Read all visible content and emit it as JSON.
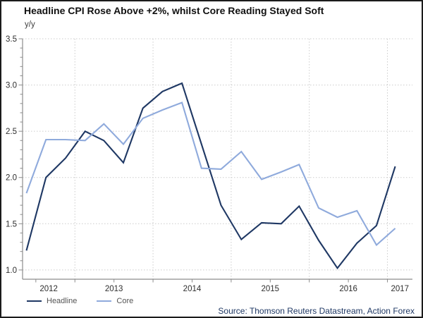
{
  "header": {
    "title": "Headline CPI Rose Above +2%, whilst Core Reading Stayed Soft"
  },
  "chart": {
    "ylabel": "y/y"
  },
  "legend": {
    "items": [
      {
        "label": "Headline",
        "color": "#1f3864"
      },
      {
        "label": "Core",
        "color": "#8faadc"
      }
    ]
  },
  "footer": {
    "source": "Source: Thomson Reuters Datastream, Action Forex"
  },
  "chart_data": {
    "type": "line",
    "title": "Headline CPI Rose Above +2%, whilst Core Reading Stayed Soft",
    "xlabel": "",
    "ylabel": "y/y",
    "grid": "dotted",
    "legend_position": "bottom-left",
    "xlim": [
      2012.33,
      2017.32
    ],
    "ylim": [
      0.9,
      3.5
    ],
    "y_ticks": [
      1.0,
      1.5,
      2.0,
      2.5,
      3.0,
      3.5
    ],
    "x_year_labels": [
      "2012",
      "2013",
      "2014",
      "2015",
      "2016",
      "2017"
    ],
    "x_years": [
      2012,
      2013,
      2014,
      2015,
      2016,
      2017
    ],
    "x": [
      2012.38,
      2012.63,
      2012.88,
      2013.13,
      2013.37,
      2013.62,
      2013.87,
      2014.12,
      2014.37,
      2014.62,
      2014.87,
      2015.13,
      2015.39,
      2015.64,
      2015.87,
      2016.12,
      2016.36,
      2016.61,
      2016.86,
      2017.1
    ],
    "series": [
      {
        "name": "Headline",
        "color": "#1f3864",
        "values": [
          1.21,
          2.0,
          2.21,
          2.5,
          2.4,
          2.16,
          2.75,
          2.93,
          3.02,
          2.36,
          1.7,
          1.33,
          1.51,
          1.5,
          1.69,
          1.32,
          1.02,
          1.29,
          1.48,
          2.12
        ]
      },
      {
        "name": "Core",
        "color": "#8faadc",
        "values": [
          1.83,
          2.41,
          2.41,
          2.4,
          2.58,
          2.36,
          2.64,
          2.73,
          2.81,
          2.1,
          2.09,
          2.28,
          1.98,
          2.06,
          2.14,
          1.67,
          1.57,
          1.64,
          1.27,
          1.45
        ]
      }
    ]
  }
}
